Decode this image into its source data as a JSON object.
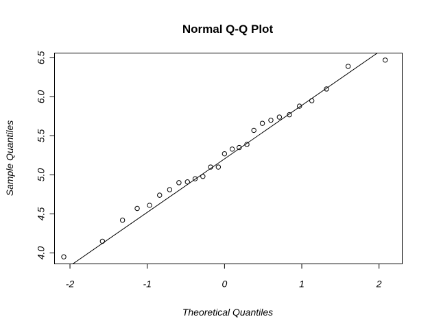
{
  "chart_data": {
    "type": "scatter",
    "title": "Normal Q-Q Plot",
    "xlabel": "Theoretical Quantiles",
    "ylabel": "Sample Quantiles",
    "xlim": [
      -2.2,
      2.3
    ],
    "ylim": [
      3.86,
      6.56
    ],
    "x_ticks": [
      -2,
      -1,
      0,
      1,
      2
    ],
    "x_tick_labels": [
      "-2",
      "-1",
      "0",
      "1",
      "2"
    ],
    "y_ticks": [
      4.0,
      4.5,
      5.0,
      5.5,
      6.0,
      6.5
    ],
    "y_tick_labels": [
      "4.0",
      "4.5",
      "5.0",
      "5.5",
      "6.0",
      "6.5"
    ],
    "grid": false,
    "points": {
      "x": [
        -2.08,
        -1.58,
        -1.32,
        -1.13,
        -0.97,
        -0.84,
        -0.71,
        -0.59,
        -0.48,
        -0.38,
        -0.28,
        -0.18,
        -0.08,
        0.0,
        0.1,
        0.19,
        0.29,
        0.38,
        0.49,
        0.6,
        0.71,
        0.84,
        0.97,
        1.13,
        1.32,
        1.6,
        2.08
      ],
      "y": [
        3.95,
        4.15,
        4.42,
        4.57,
        4.61,
        4.74,
        4.81,
        4.9,
        4.91,
        4.95,
        4.98,
        5.1,
        5.1,
        5.27,
        5.33,
        5.35,
        5.39,
        5.57,
        5.66,
        5.7,
        5.74,
        5.77,
        5.88,
        5.95,
        6.1,
        6.39,
        6.47
      ]
    },
    "reference_line": {
      "intercept": 5.205,
      "slope": 0.685
    }
  }
}
